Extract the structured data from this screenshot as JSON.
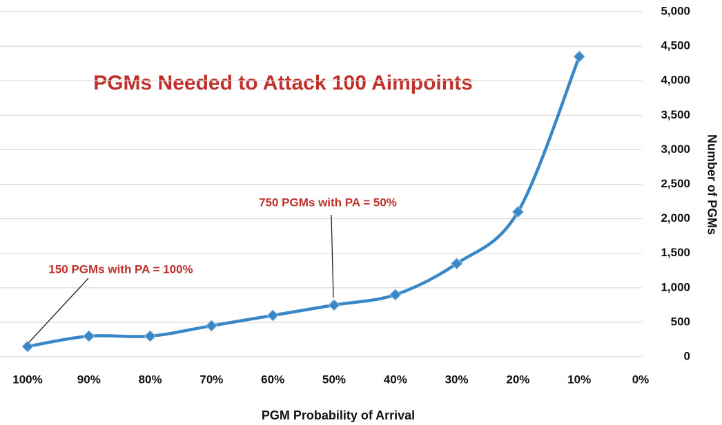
{
  "chart_data": {
    "type": "line",
    "title": "PGMs Needed to Attack 100 Aimpoints",
    "x_label": "PGM Probability of Arrival",
    "y_label": "Number of PGMs",
    "annotations": [
      "750 PGMs with PA = 50%",
      "150 PGMs with PA = 100%"
    ],
    "categories": [
      "100%",
      "90%",
      "80%",
      "70%",
      "60%",
      "50%",
      "40%",
      "30%",
      "20%",
      "10%",
      "0%"
    ],
    "series": [
      {
        "name": "PGMs",
        "color": "#3a87c8",
        "values": [
          150,
          300,
          300,
          450,
          600,
          750,
          900,
          1350,
          2100,
          4350,
          null
        ]
      }
    ],
    "ylim": [
      0,
      5000
    ],
    "yticks": [
      0,
      500,
      {
        "value": 1000,
        "label": "1,000"
      },
      {
        "value": 1500,
        "label": "1,500"
      },
      {
        "value": 2000,
        "label": "2,000"
      },
      {
        "value": 2500,
        "label": "2,500"
      },
      {
        "value": 3000,
        "label": "3,000"
      },
      {
        "value": 3500,
        "label": "3,500"
      },
      {
        "value": 4000,
        "label": "4,000"
      },
      {
        "value": 4500,
        "label": "4,500"
      },
      {
        "value": 5000,
        "label": "5,000"
      }
    ],
    "y_axis_side": "right",
    "grid": true
  }
}
